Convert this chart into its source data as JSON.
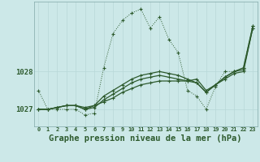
{
  "title": "Graphe pression niveau de la mer (hPa)",
  "bg_color": "#cce8e8",
  "line_color": "#2d5a2d",
  "grid_color_minor": "#b8d8d8",
  "grid_color_major": "#a0c0c0",
  "x_hours": [
    0,
    1,
    2,
    3,
    4,
    5,
    6,
    7,
    8,
    9,
    10,
    11,
    12,
    13,
    14,
    15,
    16,
    17,
    18,
    19,
    20,
    21,
    22,
    23
  ],
  "series1": [
    1027.5,
    1027.0,
    1027.0,
    1027.0,
    1027.0,
    1026.85,
    1026.9,
    1028.1,
    1029.0,
    1029.35,
    1029.55,
    1029.65,
    1029.15,
    1029.45,
    1028.85,
    1028.5,
    1027.5,
    1027.35,
    1027.0,
    1027.6,
    1028.0,
    1028.0,
    1028.1,
    1029.2
  ],
  "series2": [
    1027.0,
    1027.0,
    1027.05,
    1027.1,
    1027.1,
    1027.05,
    1027.1,
    1027.2,
    1027.3,
    1027.45,
    1027.55,
    1027.65,
    1027.7,
    1027.75,
    1027.75,
    1027.75,
    1027.75,
    1027.8,
    1027.5,
    1027.65,
    1027.8,
    1027.95,
    1028.0,
    1029.15
  ],
  "series3": [
    1027.0,
    1027.0,
    1027.05,
    1027.1,
    1027.1,
    1027.0,
    1027.05,
    1027.25,
    1027.4,
    1027.55,
    1027.7,
    1027.8,
    1027.85,
    1027.9,
    1027.85,
    1027.8,
    1027.75,
    1027.7,
    1027.45,
    1027.65,
    1027.85,
    1028.0,
    1028.05,
    1029.15
  ],
  "series4": [
    1027.0,
    1027.0,
    1027.05,
    1027.1,
    1027.1,
    1027.0,
    1027.1,
    1027.35,
    1027.5,
    1027.65,
    1027.8,
    1027.9,
    1027.95,
    1028.0,
    1027.95,
    1027.9,
    1027.8,
    1027.7,
    1027.45,
    1027.65,
    1027.85,
    1028.0,
    1028.1,
    1029.2
  ],
  "ylim_min": 1026.55,
  "ylim_max": 1029.85,
  "yticks": [
    1027,
    1028
  ],
  "figsize": [
    3.2,
    2.0
  ],
  "dpi": 100
}
